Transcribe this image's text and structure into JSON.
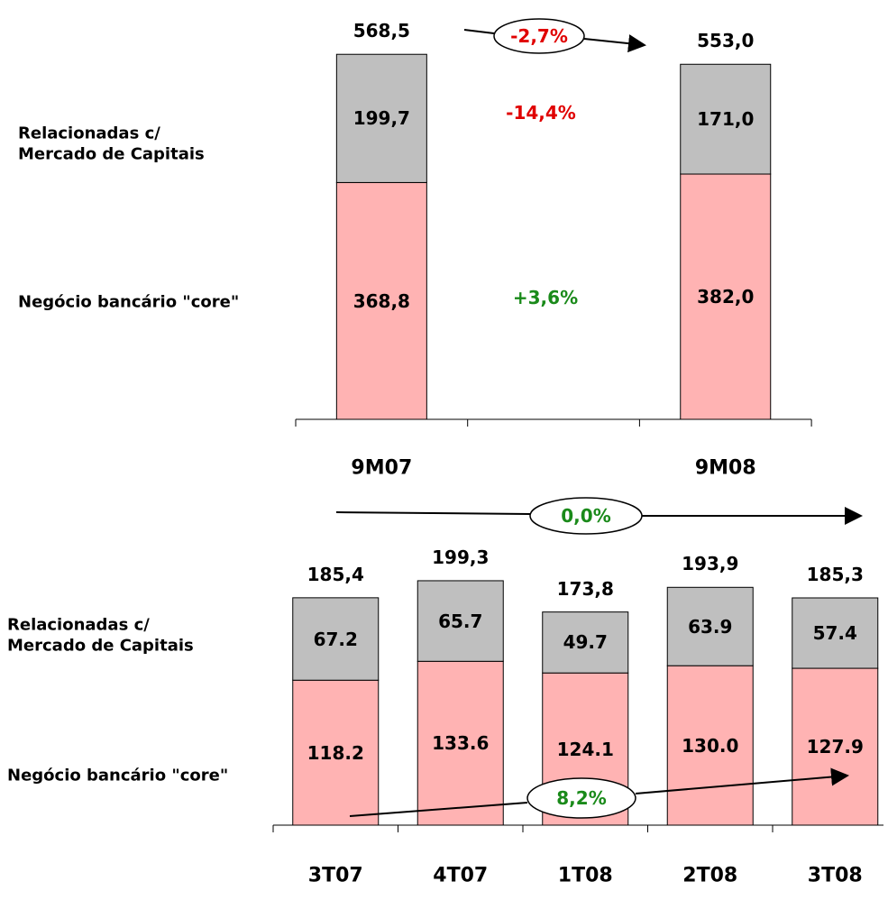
{
  "chart_data": [
    {
      "type": "stacked_bar",
      "categories": [
        "9M07",
        null,
        "9M08"
      ],
      "series": [
        {
          "name": "Negócio bancário \"core\"",
          "color": "#ffb3b3",
          "values": [
            368.8,
            null,
            382.0
          ],
          "value_labels": [
            "368,8",
            null,
            "382,0"
          ]
        },
        {
          "name": "Relacionadas c/\nMercado de Capitais",
          "color": "#bfbfbf",
          "values": [
            199.7,
            null,
            171.0
          ],
          "value_labels": [
            "199,7",
            null,
            "171,0"
          ]
        }
      ],
      "totals": [
        568.5,
        null,
        553.0
      ],
      "total_labels": [
        "568,5",
        null,
        "553,0"
      ],
      "annotations": [
        {
          "text": "-2,7%",
          "color": "#e00000"
        },
        {
          "text": "-14,4%",
          "color": "#e00000"
        },
        {
          "text": "+3,6%",
          "color": "#1a8a1a"
        }
      ]
    },
    {
      "type": "stacked_bar",
      "categories": [
        "3T07",
        "4T07",
        "1T08",
        "2T08",
        "3T08"
      ],
      "series": [
        {
          "name": "Negócio bancário \"core\"",
          "color": "#ffb3b3",
          "values": [
            118.2,
            133.6,
            124.1,
            130.0,
            127.9
          ],
          "value_labels": [
            "118.2",
            "133.6",
            "124.1",
            "130.0",
            "127.9"
          ]
        },
        {
          "name": "Relacionadas c/\nMercado de Capitais",
          "color": "#bfbfbf",
          "values": [
            67.2,
            65.7,
            49.7,
            63.9,
            57.4
          ],
          "value_labels": [
            "67.2",
            "65.7",
            "49.7",
            "63.9",
            "57.4"
          ]
        }
      ],
      "totals": [
        185.4,
        199.3,
        173.8,
        193.9,
        185.3
      ],
      "total_labels": [
        "185,4",
        "199,3",
        "173,8",
        "193,9",
        "185,3"
      ],
      "annotations": [
        {
          "text": "0,0%",
          "color": "#1a8a1a"
        },
        {
          "text": "8,2%",
          "color": "#1a8a1a"
        }
      ]
    }
  ]
}
